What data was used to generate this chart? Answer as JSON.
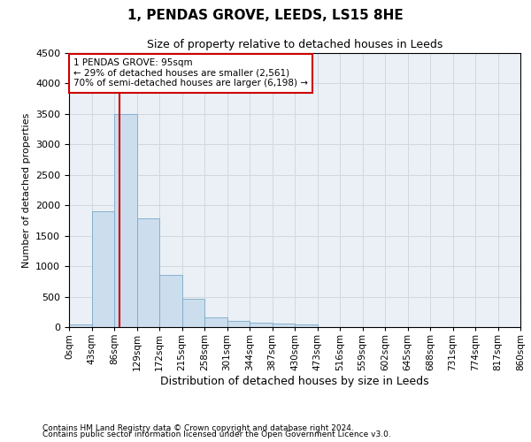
{
  "title1": "1, PENDAS GROVE, LEEDS, LS15 8HE",
  "title2": "Size of property relative to detached houses in Leeds",
  "xlabel": "Distribution of detached houses by size in Leeds",
  "ylabel": "Number of detached properties",
  "bar_values": [
    40,
    1900,
    3500,
    1780,
    850,
    460,
    160,
    100,
    75,
    55,
    40,
    0,
    0,
    0,
    0,
    0,
    0,
    0,
    0,
    0
  ],
  "x_labels": [
    "0sqm",
    "43sqm",
    "86sqm",
    "129sqm",
    "172sqm",
    "215sqm",
    "258sqm",
    "301sqm",
    "344sqm",
    "387sqm",
    "430sqm",
    "473sqm",
    "516sqm",
    "559sqm",
    "602sqm",
    "645sqm",
    "688sqm",
    "731sqm",
    "774sqm",
    "817sqm",
    "860sqm"
  ],
  "bar_color": "#ccdded",
  "bar_edge_color": "#7aaac8",
  "grid_color": "#d0d8e0",
  "vline_x": 2.25,
  "vline_color": "#cc0000",
  "annotation_text": "1 PENDAS GROVE: 95sqm\n← 29% of detached houses are smaller (2,561)\n70% of semi-detached houses are larger (6,198) →",
  "annotation_box_color": "#cc0000",
  "ylim": [
    0,
    4500
  ],
  "yticks": [
    0,
    500,
    1000,
    1500,
    2000,
    2500,
    3000,
    3500,
    4000,
    4500
  ],
  "footnote1": "Contains HM Land Registry data © Crown copyright and database right 2024.",
  "footnote2": "Contains public sector information licensed under the Open Government Licence v3.0.",
  "bg_color": "#eaf0f6",
  "title1_fontsize": 11,
  "title2_fontsize": 9,
  "ylabel_fontsize": 8,
  "xlabel_fontsize": 9,
  "tick_fontsize": 7.5,
  "ytick_fontsize": 8,
  "footnote_fontsize": 6.5
}
